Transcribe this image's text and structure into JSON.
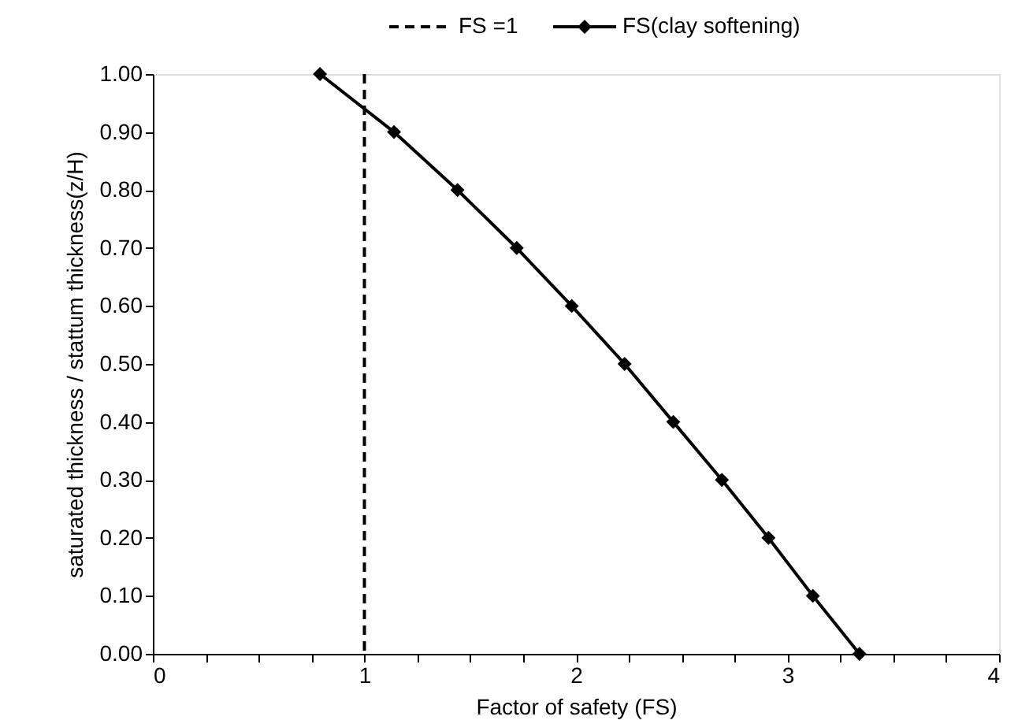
{
  "chart_data": {
    "type": "line",
    "xlabel": "Factor of safety (FS)",
    "ylabel": "saturated thickness / stattum thickness(z/H)",
    "xlim": [
      0,
      4
    ],
    "xticks": [
      0,
      {
        "value": 0.25,
        "label": null
      },
      {
        "value": 0.5,
        "label": null
      },
      {
        "value": 0.75,
        "label": null
      },
      1,
      {
        "value": 1.25,
        "label": null
      },
      {
        "value": 1.5,
        "label": null
      },
      {
        "value": 1.75,
        "label": null
      },
      2,
      {
        "value": 2.25,
        "label": null
      },
      {
        "value": 2.5,
        "label": null
      },
      {
        "value": 2.75,
        "label": null
      },
      3,
      {
        "value": 3.25,
        "label": null
      },
      {
        "value": 3.5,
        "label": null
      },
      {
        "value": 3.75,
        "label": null
      },
      4
    ],
    "ylim": [
      0,
      1
    ],
    "yticks": [
      {
        "value": 0,
        "label": "0.00"
      },
      {
        "value": 0.1,
        "label": "0.10"
      },
      {
        "value": 0.2,
        "label": "0.20"
      },
      {
        "value": 0.3,
        "label": "0.30"
      },
      {
        "value": 0.4,
        "label": "0.40"
      },
      {
        "value": 0.5,
        "label": "0.50"
      },
      {
        "value": 0.6,
        "label": "0.60"
      },
      {
        "value": 0.7,
        "label": "0.70"
      },
      {
        "value": 0.8,
        "label": "0.80"
      },
      {
        "value": 0.9,
        "label": "0.90"
      },
      {
        "value": 1.0,
        "label": "1.00"
      }
    ],
    "grid": false,
    "legend": "top",
    "marker": "diamond",
    "line_style": "solid",
    "ref_lines": [
      {
        "axis": "x",
        "value": 1,
        "label": "FS =1",
        "color": "#000000",
        "line_style": "dashed"
      }
    ],
    "series": [
      {
        "name": "FS(clay softening)",
        "color": "#000000",
        "x": [
          0.79,
          1.14,
          1.44,
          1.72,
          1.98,
          2.23,
          2.46,
          2.69,
          2.91,
          3.12,
          3.34
        ],
        "values": [
          1.0,
          0.9,
          0.8,
          0.7,
          0.6,
          0.5,
          0.4,
          0.3,
          0.2,
          0.1,
          0.0
        ]
      }
    ]
  }
}
